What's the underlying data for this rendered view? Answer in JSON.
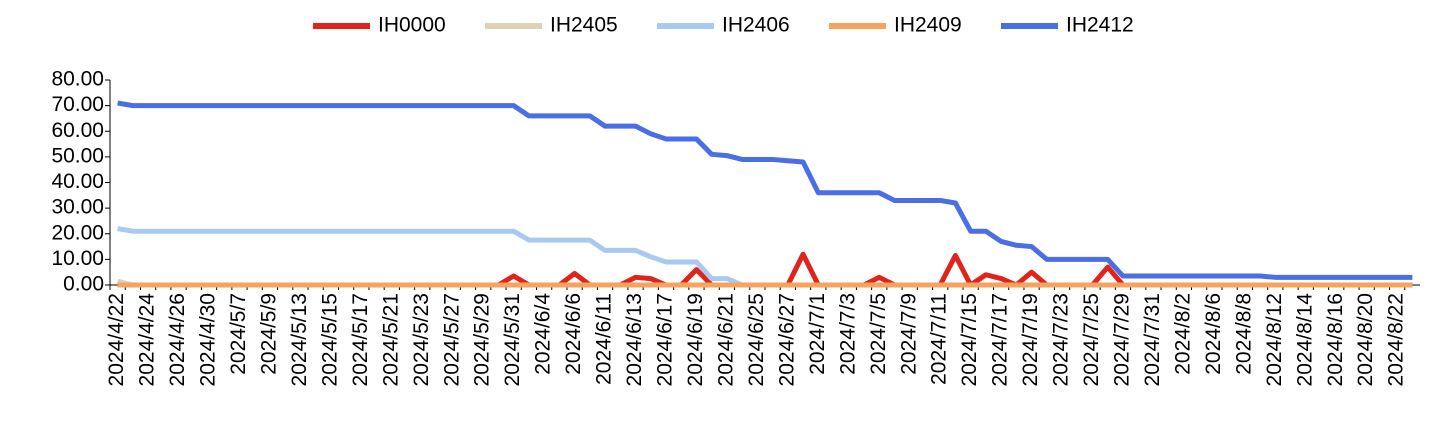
{
  "chart_data": {
    "type": "line",
    "categories": [
      "2024/4/22",
      null,
      "2024/4/24",
      null,
      "2024/4/26",
      null,
      "2024/4/30",
      null,
      "2024/5/7",
      null,
      "2024/5/9",
      null,
      "2024/5/13",
      null,
      "2024/5/15",
      null,
      "2024/5/17",
      null,
      "2024/5/21",
      null,
      "2024/5/23",
      null,
      "2024/5/27",
      null,
      "2024/5/29",
      null,
      "2024/5/31",
      null,
      "2024/6/4",
      null,
      "2024/6/6",
      null,
      "2024/6/11",
      null,
      "2024/6/13",
      null,
      "2024/6/17",
      null,
      "2024/6/19",
      null,
      "2024/6/21",
      null,
      "2024/6/25",
      null,
      "2024/6/27",
      null,
      "2024/7/1",
      null,
      "2024/7/3",
      null,
      "2024/7/5",
      null,
      "2024/7/9",
      null,
      "2024/7/11",
      null,
      "2024/7/15",
      null,
      "2024/7/17",
      null,
      "2024/7/19",
      null,
      "2024/7/23",
      null,
      "2024/7/25",
      null,
      "2024/7/29",
      null,
      "2024/7/31",
      null,
      "2024/8/2",
      null,
      "2024/8/6",
      null,
      "2024/8/8",
      null,
      "2024/8/12",
      null,
      "2024/8/14",
      null,
      "2024/8/16",
      null,
      "2024/8/20",
      null,
      "2024/8/22",
      null
    ],
    "series": [
      {
        "name": "IH0000",
        "color": "#e0241b",
        "values": [
          0,
          0,
          0,
          0,
          0,
          0,
          0,
          0,
          0,
          0,
          0,
          0,
          0,
          0,
          0,
          0,
          0,
          0,
          0,
          0,
          0,
          0,
          0,
          0,
          0,
          0,
          3.5,
          0,
          0,
          0,
          4.5,
          0,
          0,
          0,
          3,
          2.5,
          0,
          0,
          6,
          0,
          0,
          0,
          0,
          0,
          0,
          12,
          0,
          0,
          0,
          0,
          3,
          0,
          0,
          0,
          0,
          11.5,
          0,
          4,
          2.5,
          0,
          5,
          0,
          0,
          0,
          0,
          7,
          0,
          0,
          0,
          0,
          0,
          0,
          0,
          0,
          0,
          0,
          0,
          0,
          0,
          0,
          0,
          0,
          0,
          0,
          0,
          0
        ]
      },
      {
        "name": "IH2405",
        "color": "#ddd1b6",
        "values": [
          1.5,
          0,
          0,
          0,
          0,
          0,
          0,
          0,
          0,
          0,
          0,
          0,
          0,
          0,
          0,
          0,
          0,
          null,
          null,
          null,
          null,
          null,
          null,
          null,
          null,
          null,
          null,
          null,
          null,
          null,
          null,
          null,
          null,
          null,
          null,
          null,
          null,
          null,
          null,
          null,
          null,
          null,
          null,
          null,
          null,
          null,
          null,
          null,
          null,
          null,
          null,
          null,
          null,
          null,
          null,
          null,
          null,
          null,
          null,
          null,
          null,
          null,
          null,
          null,
          null,
          null,
          null,
          null,
          null,
          null,
          null,
          null,
          null,
          null,
          null,
          null,
          null,
          null,
          null,
          null,
          null,
          null,
          null,
          null,
          null,
          null
        ]
      },
      {
        "name": "IH2406",
        "color": "#a9c9f2",
        "values": [
          22,
          21,
          21,
          21,
          21,
          21,
          21,
          21,
          21,
          21,
          21,
          21,
          21,
          21,
          21,
          21,
          21,
          21,
          21,
          21,
          21,
          21,
          21,
          21,
          21,
          21,
          21,
          17.5,
          17.5,
          17.5,
          17.5,
          17.5,
          13.5,
          13.5,
          13.5,
          11,
          9,
          9,
          9,
          2.5,
          2.5,
          0,
          null,
          null,
          null,
          null,
          null,
          null,
          null,
          null,
          null,
          null,
          null,
          null,
          null,
          null,
          null,
          null,
          null,
          null,
          null,
          null,
          null,
          null,
          null,
          null,
          null,
          null,
          null,
          null,
          null,
          null,
          null,
          null,
          null,
          null,
          null,
          null,
          null,
          null,
          null,
          null,
          null,
          null,
          null,
          null
        ]
      },
      {
        "name": "IH2409",
        "color": "#f6a35f",
        "values": [
          0,
          0,
          0,
          0,
          0,
          0,
          0,
          0,
          0,
          0,
          0,
          0,
          0,
          0,
          0,
          0,
          0,
          0,
          0,
          0,
          0,
          0,
          0,
          0,
          0,
          0,
          0,
          0,
          0,
          0,
          0,
          0,
          0,
          0,
          0,
          0,
          0,
          0,
          0,
          0,
          0,
          0,
          0,
          0,
          0,
          0,
          0,
          0,
          0,
          0,
          0,
          0,
          0,
          0,
          0,
          0,
          0,
          0,
          0,
          0,
          0,
          0,
          0,
          0,
          0,
          0,
          0,
          0,
          0,
          0,
          0,
          0,
          0,
          0,
          0,
          0,
          0,
          0,
          0,
          0,
          0,
          0,
          0,
          0,
          0,
          0
        ]
      },
      {
        "name": "IH2412",
        "color": "#4a6ee6",
        "values": [
          71,
          70,
          70,
          70,
          70,
          70,
          70,
          70,
          70,
          70,
          70,
          70,
          70,
          70,
          70,
          70,
          70,
          70,
          70,
          70,
          70,
          70,
          70,
          70,
          70,
          70,
          70,
          66,
          66,
          66,
          66,
          66,
          62,
          62,
          62,
          59,
          57,
          57,
          57,
          51,
          50.5,
          49,
          49,
          49,
          48.5,
          48,
          36,
          36,
          36,
          36,
          36,
          33,
          33,
          33,
          33,
          32,
          21,
          21,
          17,
          15.5,
          15,
          10,
          10,
          10,
          10,
          10,
          3.5,
          3.5,
          3.5,
          3.5,
          3.5,
          3.5,
          3.5,
          3.5,
          3.5,
          3.5,
          3,
          3,
          3,
          3,
          3,
          3,
          3,
          3,
          3,
          3
        ]
      }
    ],
    "ylim": [
      0,
      80
    ],
    "yticks": [
      {
        "value": 0,
        "label": "0.00"
      },
      {
        "value": 10,
        "label": "10.00"
      },
      {
        "value": 20,
        "label": "20.00"
      },
      {
        "value": 30,
        "label": "30.00"
      },
      {
        "value": 40,
        "label": "40.00"
      },
      {
        "value": 50,
        "label": "50.00"
      },
      {
        "value": 60,
        "label": "60.00"
      },
      {
        "value": 70,
        "label": "70.00"
      },
      {
        "value": 80,
        "label": "80.00"
      }
    ],
    "grid": false,
    "legend": "top"
  }
}
